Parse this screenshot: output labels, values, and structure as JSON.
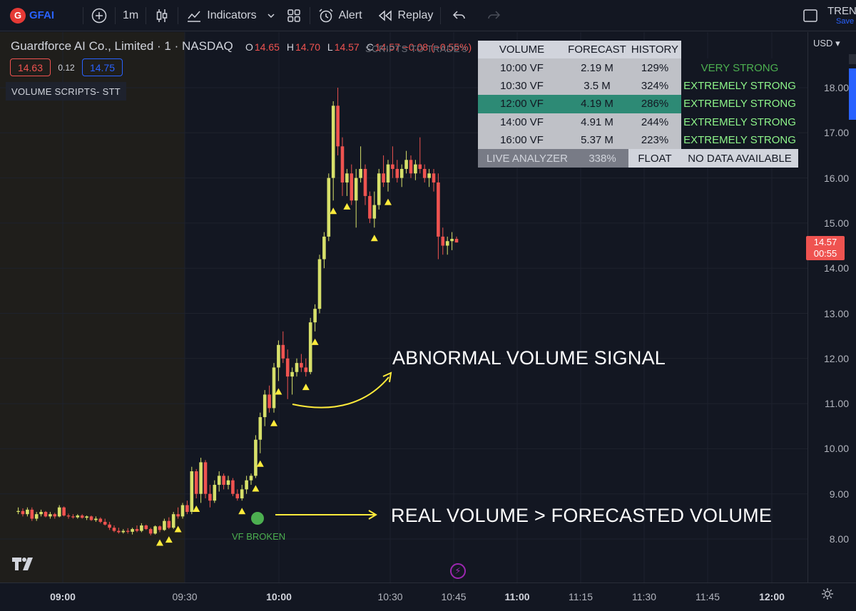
{
  "toolbar": {
    "ticker": "GFAI",
    "interval": "1m",
    "indicators_label": "Indicators",
    "alert_label": "Alert",
    "replay_label": "Replay",
    "trend_label": "TREND",
    "save_label": "Save"
  },
  "legend": {
    "title": "Guardforce AI Co., Limited · 1 · NASDAQ",
    "open_key": "O",
    "open": "14.65",
    "high_key": "H",
    "high": "14.70",
    "low_key": "L",
    "low": "14.57",
    "close_key": "C",
    "close": "14.57 −0.08 (−0.55%)",
    "bid": "14.63",
    "spread": "0.12",
    "ask": "14.75",
    "indicator": "VOLUME SCRIPTS- STT",
    "faded_text": "SCRIPTS TO TRADE's"
  },
  "vtable": {
    "headers": [
      "VOLUME",
      "FORECAST",
      "HISTORY"
    ],
    "rows": [
      {
        "time": "10:00 VF",
        "forecast": "2.19 M",
        "history": "129%",
        "rating": "VERY STRONG"
      },
      {
        "time": "10:30 VF",
        "forecast": "3.5 M",
        "history": "324%",
        "rating": "EXTREMELY STRONG"
      },
      {
        "time": "12:00 VF",
        "forecast": "4.19 M",
        "history": "286%",
        "rating": "EXTREMELY STRONG"
      },
      {
        "time": "14:00 VF",
        "forecast": "4.91 M",
        "history": "244%",
        "rating": "EXTREMELY STRONG"
      },
      {
        "time": "16:00 VF",
        "forecast": "5.37 M",
        "history": "223%",
        "rating": "EXTREMELY STRONG"
      }
    ],
    "live": {
      "label": "LIVE ANALYZER",
      "value": "338%",
      "float_label": "FLOAT",
      "float_value": "NO DATA AVAILABLE"
    }
  },
  "annotations": {
    "abnormal": "ABNORMAL VOLUME SIGNAL",
    "real_vs_forecast": "REAL VOLUME > FORECASTED VOLUME",
    "vf_broken": "VF BROKEN"
  },
  "price_scale": {
    "currency": "USD",
    "labels": [
      "18.00",
      "17.00",
      "16.00",
      "15.00",
      "14.00",
      "13.00",
      "12.00",
      "11.00",
      "10.00",
      "9.00",
      "8.00"
    ],
    "current_price": "14.57",
    "countdown": "00:55"
  },
  "time_scale": {
    "labels": [
      "09:00",
      "09:30",
      "10:00",
      "10:30",
      "10:45",
      "11:00",
      "11:15",
      "11:30",
      "11:45",
      "12:00"
    ]
  },
  "colors": {
    "up": "#d7e06a",
    "down": "#ef5350",
    "signal": "#ffeb3b",
    "arrow": "#ffeb3b"
  },
  "chart_data": {
    "type": "candlestick",
    "symbol": "GFAI",
    "interval": "1m",
    "ylim": [
      7.6,
      18.6
    ],
    "candles": [
      {
        "o": 8.6,
        "h": 8.7,
        "l": 8.55,
        "c": 8.62
      },
      {
        "o": 8.62,
        "h": 8.68,
        "l": 8.5,
        "c": 8.55
      },
      {
        "o": 8.55,
        "h": 8.7,
        "l": 8.5,
        "c": 8.65
      },
      {
        "o": 8.65,
        "h": 8.7,
        "l": 8.4,
        "c": 8.45
      },
      {
        "o": 8.45,
        "h": 8.6,
        "l": 8.4,
        "c": 8.55
      },
      {
        "o": 8.55,
        "h": 8.65,
        "l": 8.5,
        "c": 8.6
      },
      {
        "o": 8.6,
        "h": 8.62,
        "l": 8.48,
        "c": 8.5
      },
      {
        "o": 8.5,
        "h": 8.6,
        "l": 8.45,
        "c": 8.55
      },
      {
        "o": 8.55,
        "h": 8.58,
        "l": 8.45,
        "c": 8.5
      },
      {
        "o": 8.5,
        "h": 8.75,
        "l": 8.48,
        "c": 8.7
      },
      {
        "o": 8.7,
        "h": 8.72,
        "l": 8.5,
        "c": 8.52
      },
      {
        "o": 8.52,
        "h": 8.56,
        "l": 8.45,
        "c": 8.5
      },
      {
        "o": 8.5,
        "h": 8.55,
        "l": 8.45,
        "c": 8.48
      },
      {
        "o": 8.48,
        "h": 8.55,
        "l": 8.45,
        "c": 8.52
      },
      {
        "o": 8.52,
        "h": 8.55,
        "l": 8.45,
        "c": 8.47
      },
      {
        "o": 8.47,
        "h": 8.52,
        "l": 8.42,
        "c": 8.5
      },
      {
        "o": 8.5,
        "h": 8.52,
        "l": 8.4,
        "c": 8.42
      },
      {
        "o": 8.42,
        "h": 8.5,
        "l": 8.38,
        "c": 8.45
      },
      {
        "o": 8.45,
        "h": 8.48,
        "l": 8.35,
        "c": 8.38
      },
      {
        "o": 8.38,
        "h": 8.45,
        "l": 8.3,
        "c": 8.32
      },
      {
        "o": 8.32,
        "h": 8.38,
        "l": 8.2,
        "c": 8.25
      },
      {
        "o": 8.25,
        "h": 8.3,
        "l": 8.15,
        "c": 8.18
      },
      {
        "o": 8.18,
        "h": 8.25,
        "l": 8.12,
        "c": 8.15
      },
      {
        "o": 8.15,
        "h": 8.22,
        "l": 8.12,
        "c": 8.18
      },
      {
        "o": 8.18,
        "h": 8.24,
        "l": 8.12,
        "c": 8.16
      },
      {
        "o": 8.16,
        "h": 8.25,
        "l": 8.1,
        "c": 8.22
      },
      {
        "o": 8.22,
        "h": 8.3,
        "l": 8.15,
        "c": 8.18
      },
      {
        "o": 8.18,
        "h": 8.35,
        "l": 8.15,
        "c": 8.3
      },
      {
        "o": 8.3,
        "h": 8.32,
        "l": 8.2,
        "c": 8.22
      },
      {
        "o": 8.22,
        "h": 8.25,
        "l": 8.08,
        "c": 8.12
      },
      {
        "o": 8.12,
        "h": 8.3,
        "l": 8.1,
        "c": 8.28
      },
      {
        "o": 8.28,
        "h": 8.3,
        "l": 8.15,
        "c": 8.2
      },
      {
        "o": 8.2,
        "h": 8.45,
        "l": 8.18,
        "c": 8.4
      },
      {
        "o": 8.4,
        "h": 8.48,
        "l": 8.22,
        "c": 8.25
      },
      {
        "o": 8.25,
        "h": 8.6,
        "l": 8.22,
        "c": 8.55
      },
      {
        "o": 8.55,
        "h": 8.7,
        "l": 8.45,
        "c": 8.5
      },
      {
        "o": 8.5,
        "h": 8.8,
        "l": 8.45,
        "c": 8.75
      },
      {
        "o": 8.75,
        "h": 8.85,
        "l": 8.55,
        "c": 8.6
      },
      {
        "o": 8.6,
        "h": 9.6,
        "l": 8.55,
        "c": 9.5
      },
      {
        "o": 9.5,
        "h": 9.55,
        "l": 8.9,
        "c": 9.0
      },
      {
        "o": 9.0,
        "h": 9.8,
        "l": 8.8,
        "c": 9.7
      },
      {
        "o": 9.7,
        "h": 9.75,
        "l": 8.9,
        "c": 9.0
      },
      {
        "o": 9.0,
        "h": 9.2,
        "l": 8.7,
        "c": 8.85
      },
      {
        "o": 8.85,
        "h": 9.3,
        "l": 8.8,
        "c": 9.2
      },
      {
        "o": 9.2,
        "h": 9.5,
        "l": 9.05,
        "c": 9.4
      },
      {
        "o": 9.4,
        "h": 9.45,
        "l": 9.1,
        "c": 9.2
      },
      {
        "o": 9.2,
        "h": 9.4,
        "l": 9.1,
        "c": 9.3
      },
      {
        "o": 9.3,
        "h": 9.35,
        "l": 8.95,
        "c": 9.0
      },
      {
        "o": 9.0,
        "h": 9.1,
        "l": 8.85,
        "c": 8.9
      },
      {
        "o": 8.9,
        "h": 9.2,
        "l": 8.85,
        "c": 9.1
      },
      {
        "o": 9.1,
        "h": 9.4,
        "l": 9.0,
        "c": 9.3
      },
      {
        "o": 9.3,
        "h": 9.45,
        "l": 9.2,
        "c": 9.4
      },
      {
        "o": 9.4,
        "h": 10.3,
        "l": 9.35,
        "c": 10.2
      },
      {
        "o": 10.2,
        "h": 10.8,
        "l": 9.9,
        "c": 10.7
      },
      {
        "o": 10.7,
        "h": 11.3,
        "l": 10.5,
        "c": 11.2
      },
      {
        "o": 11.2,
        "h": 11.4,
        "l": 10.8,
        "c": 10.9
      },
      {
        "o": 10.9,
        "h": 11.9,
        "l": 10.8,
        "c": 11.8
      },
      {
        "o": 11.8,
        "h": 12.4,
        "l": 11.5,
        "c": 12.3
      },
      {
        "o": 12.3,
        "h": 12.6,
        "l": 11.9,
        "c": 12.0
      },
      {
        "o": 12.0,
        "h": 12.2,
        "l": 11.1,
        "c": 11.6
      },
      {
        "o": 11.6,
        "h": 11.8,
        "l": 11.2,
        "c": 11.7
      },
      {
        "o": 11.7,
        "h": 12.0,
        "l": 11.6,
        "c": 11.9
      },
      {
        "o": 11.9,
        "h": 12.1,
        "l": 11.7,
        "c": 11.8
      },
      {
        "o": 11.8,
        "h": 12.0,
        "l": 11.6,
        "c": 11.7
      },
      {
        "o": 11.7,
        "h": 12.9,
        "l": 11.65,
        "c": 12.8
      },
      {
        "o": 12.8,
        "h": 13.2,
        "l": 12.6,
        "c": 13.1
      },
      {
        "o": 13.1,
        "h": 14.3,
        "l": 13.0,
        "c": 14.2
      },
      {
        "o": 14.2,
        "h": 14.8,
        "l": 14.0,
        "c": 14.7
      },
      {
        "o": 14.7,
        "h": 16.1,
        "l": 14.6,
        "c": 16.0
      },
      {
        "o": 16.0,
        "h": 17.7,
        "l": 15.5,
        "c": 17.6
      },
      {
        "o": 17.6,
        "h": 18.0,
        "l": 16.5,
        "c": 16.7
      },
      {
        "o": 16.7,
        "h": 16.9,
        "l": 15.6,
        "c": 15.9
      },
      {
        "o": 15.9,
        "h": 16.2,
        "l": 15.6,
        "c": 16.1
      },
      {
        "o": 16.1,
        "h": 16.3,
        "l": 15.4,
        "c": 15.5
      },
      {
        "o": 15.5,
        "h": 16.2,
        "l": 14.9,
        "c": 16.0
      },
      {
        "o": 16.0,
        "h": 16.7,
        "l": 15.9,
        "c": 16.2
      },
      {
        "o": 16.2,
        "h": 16.3,
        "l": 15.4,
        "c": 15.6
      },
      {
        "o": 15.6,
        "h": 15.7,
        "l": 15.0,
        "c": 15.1
      },
      {
        "o": 15.1,
        "h": 15.7,
        "l": 14.9,
        "c": 15.4
      },
      {
        "o": 15.4,
        "h": 16.2,
        "l": 15.3,
        "c": 16.1
      },
      {
        "o": 16.1,
        "h": 16.5,
        "l": 15.8,
        "c": 15.9
      },
      {
        "o": 15.9,
        "h": 16.4,
        "l": 15.7,
        "c": 16.3
      },
      {
        "o": 16.3,
        "h": 16.7,
        "l": 16.0,
        "c": 16.2
      },
      {
        "o": 16.2,
        "h": 16.4,
        "l": 15.9,
        "c": 16.0
      },
      {
        "o": 16.0,
        "h": 16.3,
        "l": 15.8,
        "c": 16.2
      },
      {
        "o": 16.2,
        "h": 16.6,
        "l": 16.1,
        "c": 16.4
      },
      {
        "o": 16.4,
        "h": 16.5,
        "l": 16.0,
        "c": 16.1
      },
      {
        "o": 16.1,
        "h": 16.4,
        "l": 15.95,
        "c": 16.3
      },
      {
        "o": 16.3,
        "h": 16.9,
        "l": 16.1,
        "c": 16.2
      },
      {
        "o": 16.2,
        "h": 16.3,
        "l": 15.9,
        "c": 16.0
      },
      {
        "o": 16.0,
        "h": 16.2,
        "l": 15.8,
        "c": 16.1
      },
      {
        "o": 16.1,
        "h": 16.2,
        "l": 15.7,
        "c": 15.9
      },
      {
        "o": 15.9,
        "h": 16.1,
        "l": 14.2,
        "c": 14.7
      },
      {
        "o": 14.7,
        "h": 14.9,
        "l": 14.3,
        "c": 14.5
      },
      {
        "o": 14.5,
        "h": 14.7,
        "l": 14.3,
        "c": 14.6
      },
      {
        "o": 14.6,
        "h": 14.8,
        "l": 14.4,
        "c": 14.65
      },
      {
        "o": 14.65,
        "h": 14.7,
        "l": 14.57,
        "c": 14.57
      }
    ],
    "signals": [
      31,
      33,
      35,
      39,
      49,
      52,
      53,
      56,
      57,
      63,
      65,
      69,
      72,
      78,
      81
    ]
  }
}
